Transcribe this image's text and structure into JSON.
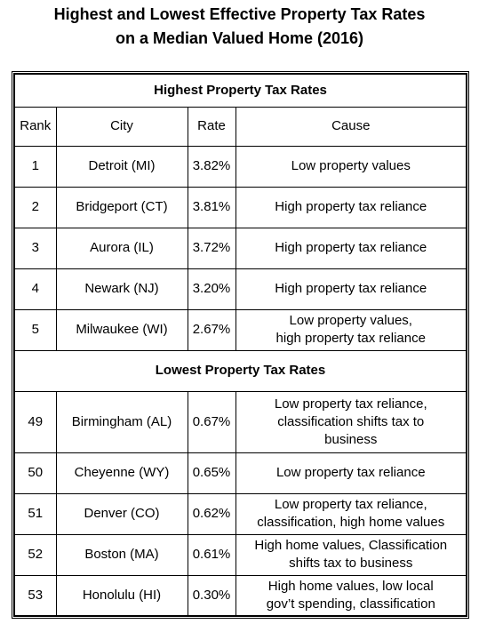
{
  "header": {
    "title_lines": [
      "Highest and Lowest Effective Property Tax Rates",
      "on a Median Valued Home (2016)"
    ]
  },
  "table": {
    "columns": [
      "Rank",
      "City",
      "Rate",
      "Cause"
    ],
    "sections": [
      {
        "title": "Highest Property Tax Rates",
        "show_columns": true,
        "rows": [
          {
            "rank": "1",
            "city": "Detroit (MI)",
            "rate": "3.82%",
            "cause": [
              "Low property values"
            ]
          },
          {
            "rank": "2",
            "city": "Bridgeport (CT)",
            "rate": "3.81%",
            "cause": [
              "High property tax reliance"
            ]
          },
          {
            "rank": "3",
            "city": "Aurora (IL)",
            "rate": "3.72%",
            "cause": [
              "High property tax reliance"
            ]
          },
          {
            "rank": "4",
            "city": "Newark (NJ)",
            "rate": "3.20%",
            "cause": [
              "High property tax reliance"
            ]
          },
          {
            "rank": "5",
            "city": "Milwaukee (WI)",
            "rate": "2.67%",
            "cause": [
              "Low property values,",
              "high property tax reliance"
            ]
          }
        ]
      },
      {
        "title": "Lowest Property Tax Rates",
        "show_columns": false,
        "rows": [
          {
            "rank": "49",
            "city": "Birmingham (AL)",
            "rate": "0.67%",
            "cause": [
              "Low property tax reliance,",
              "classification shifts tax to",
              "business"
            ]
          },
          {
            "rank": "50",
            "city": "Cheyenne (WY)",
            "rate": "0.65%",
            "cause": [
              "Low property tax reliance"
            ]
          },
          {
            "rank": "51",
            "city": "Denver (CO)",
            "rate": "0.62%",
            "cause": [
              "Low property tax reliance,",
              "classification, high home values"
            ]
          },
          {
            "rank": "52",
            "city": "Boston (MA)",
            "rate": "0.61%",
            "cause": [
              "High home values, Classification",
              "shifts tax to business"
            ]
          },
          {
            "rank": "53",
            "city": "Honolulu (HI)",
            "rate": "0.30%",
            "cause": [
              "High home values, low local",
              "gov’t spending, classification"
            ]
          }
        ]
      }
    ]
  }
}
